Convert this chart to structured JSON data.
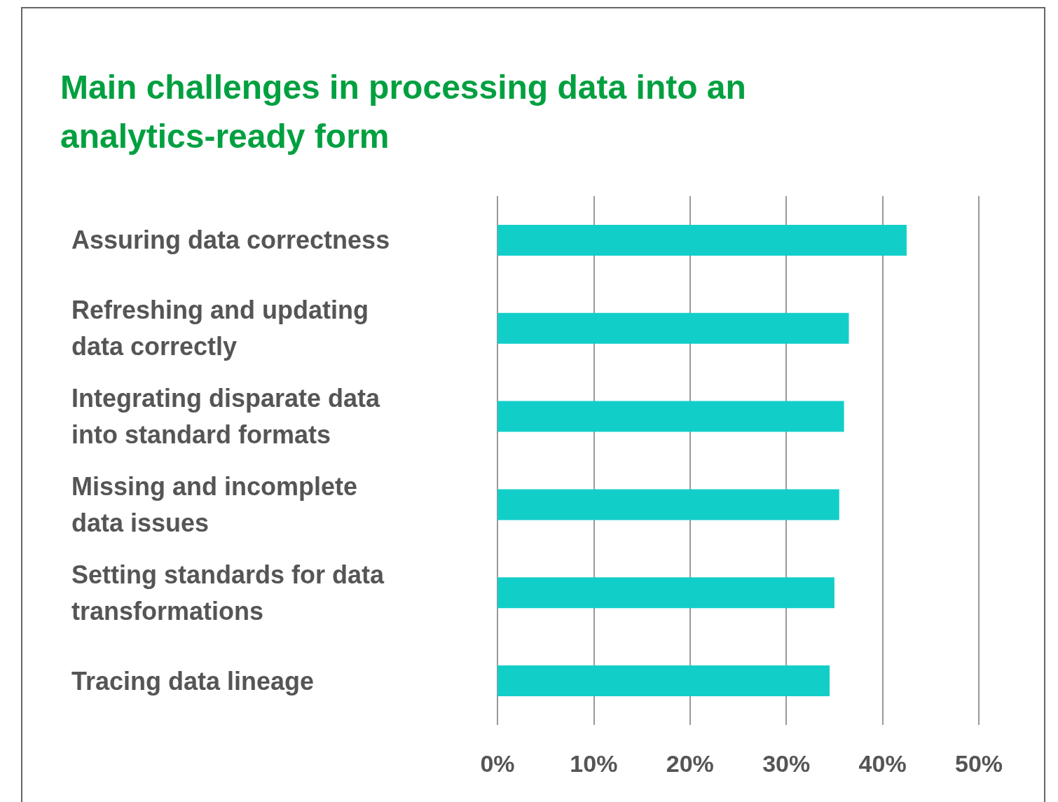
{
  "chart_data": {
    "type": "bar",
    "orientation": "horizontal",
    "title": "Main challenges in processing data into an analytics-ready form",
    "categories": [
      "Assuring data correctness",
      "Refreshing and updating data correctly",
      "Integrating disparate data into standard formats",
      "Missing and incomplete data issues",
      "Setting standards for data transformations",
      "Tracing data lineage"
    ],
    "values": [
      42.5,
      36.5,
      36,
      35.5,
      35,
      34.5
    ],
    "color": "#12cec8",
    "xlim": [
      0,
      50
    ],
    "xticks": [
      {
        "value": 0,
        "label": "0%"
      },
      {
        "value": 10,
        "label": "10%"
      },
      {
        "value": 20,
        "label": "20%"
      },
      {
        "value": 30,
        "label": "30%"
      },
      {
        "value": 40,
        "label": "40%"
      },
      {
        "value": 50,
        "label": "50%"
      }
    ],
    "grid": "x"
  }
}
